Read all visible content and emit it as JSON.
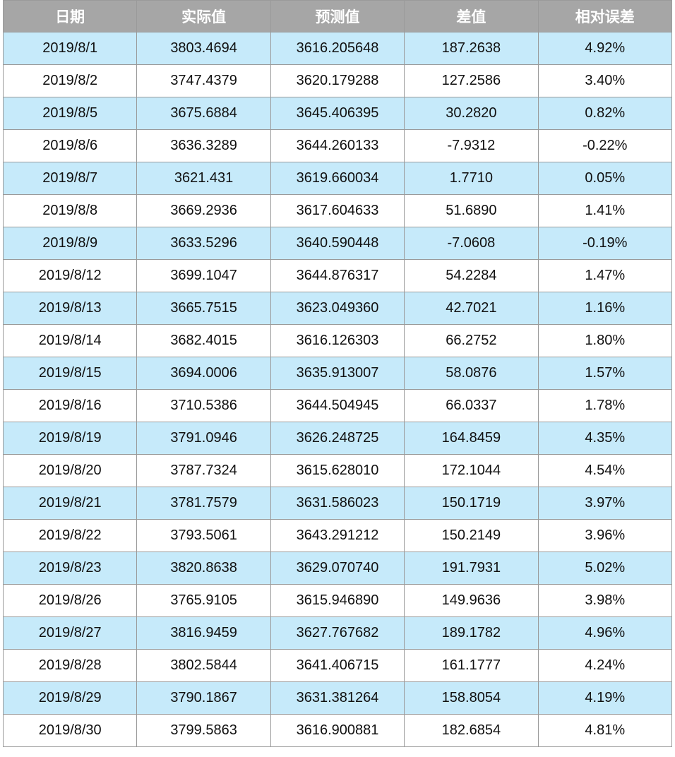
{
  "table": {
    "header": [
      "日期",
      "实际值",
      "预测值",
      "差值",
      "相对误差"
    ],
    "rows": [
      [
        "2019/8/1",
        "3803.4694",
        "3616.205648",
        "187.2638",
        "4.92%"
      ],
      [
        "2019/8/2",
        "3747.4379",
        "3620.179288",
        "127.2586",
        "3.40%"
      ],
      [
        "2019/8/5",
        "3675.6884",
        "3645.406395",
        "30.2820",
        "0.82%"
      ],
      [
        "2019/8/6",
        "3636.3289",
        "3644.260133",
        "-7.9312",
        "-0.22%"
      ],
      [
        "2019/8/7",
        "3621.431",
        "3619.660034",
        "1.7710",
        "0.05%"
      ],
      [
        "2019/8/8",
        "3669.2936",
        "3617.604633",
        "51.6890",
        "1.41%"
      ],
      [
        "2019/8/9",
        "3633.5296",
        "3640.590448",
        "-7.0608",
        "-0.19%"
      ],
      [
        "2019/8/12",
        "3699.1047",
        "3644.876317",
        "54.2284",
        "1.47%"
      ],
      [
        "2019/8/13",
        "3665.7515",
        "3623.049360",
        "42.7021",
        "1.16%"
      ],
      [
        "2019/8/14",
        "3682.4015",
        "3616.126303",
        "66.2752",
        "1.80%"
      ],
      [
        "2019/8/15",
        "3694.0006",
        "3635.913007",
        "58.0876",
        "1.57%"
      ],
      [
        "2019/8/16",
        "3710.5386",
        "3644.504945",
        "66.0337",
        "1.78%"
      ],
      [
        "2019/8/19",
        "3791.0946",
        "3626.248725",
        "164.8459",
        "4.35%"
      ],
      [
        "2019/8/20",
        "3787.7324",
        "3615.628010",
        "172.1044",
        "4.54%"
      ],
      [
        "2019/8/21",
        "3781.7579",
        "3631.586023",
        "150.1719",
        "3.97%"
      ],
      [
        "2019/8/22",
        "3793.5061",
        "3643.291212",
        "150.2149",
        "3.96%"
      ],
      [
        "2019/8/23",
        "3820.8638",
        "3629.070740",
        "191.7931",
        "5.02%"
      ],
      [
        "2019/8/26",
        "3765.9105",
        "3615.946890",
        "149.9636",
        "3.98%"
      ],
      [
        "2019/8/27",
        "3816.9459",
        "3627.767682",
        "189.1782",
        "4.96%"
      ],
      [
        "2019/8/28",
        "3802.5844",
        "3641.406715",
        "161.1777",
        "4.24%"
      ],
      [
        "2019/8/29",
        "3790.1867",
        "3631.381264",
        "158.8054",
        "4.19%"
      ],
      [
        "2019/8/30",
        "3799.5863",
        "3616.900881",
        "182.6854",
        "4.81%"
      ]
    ]
  }
}
